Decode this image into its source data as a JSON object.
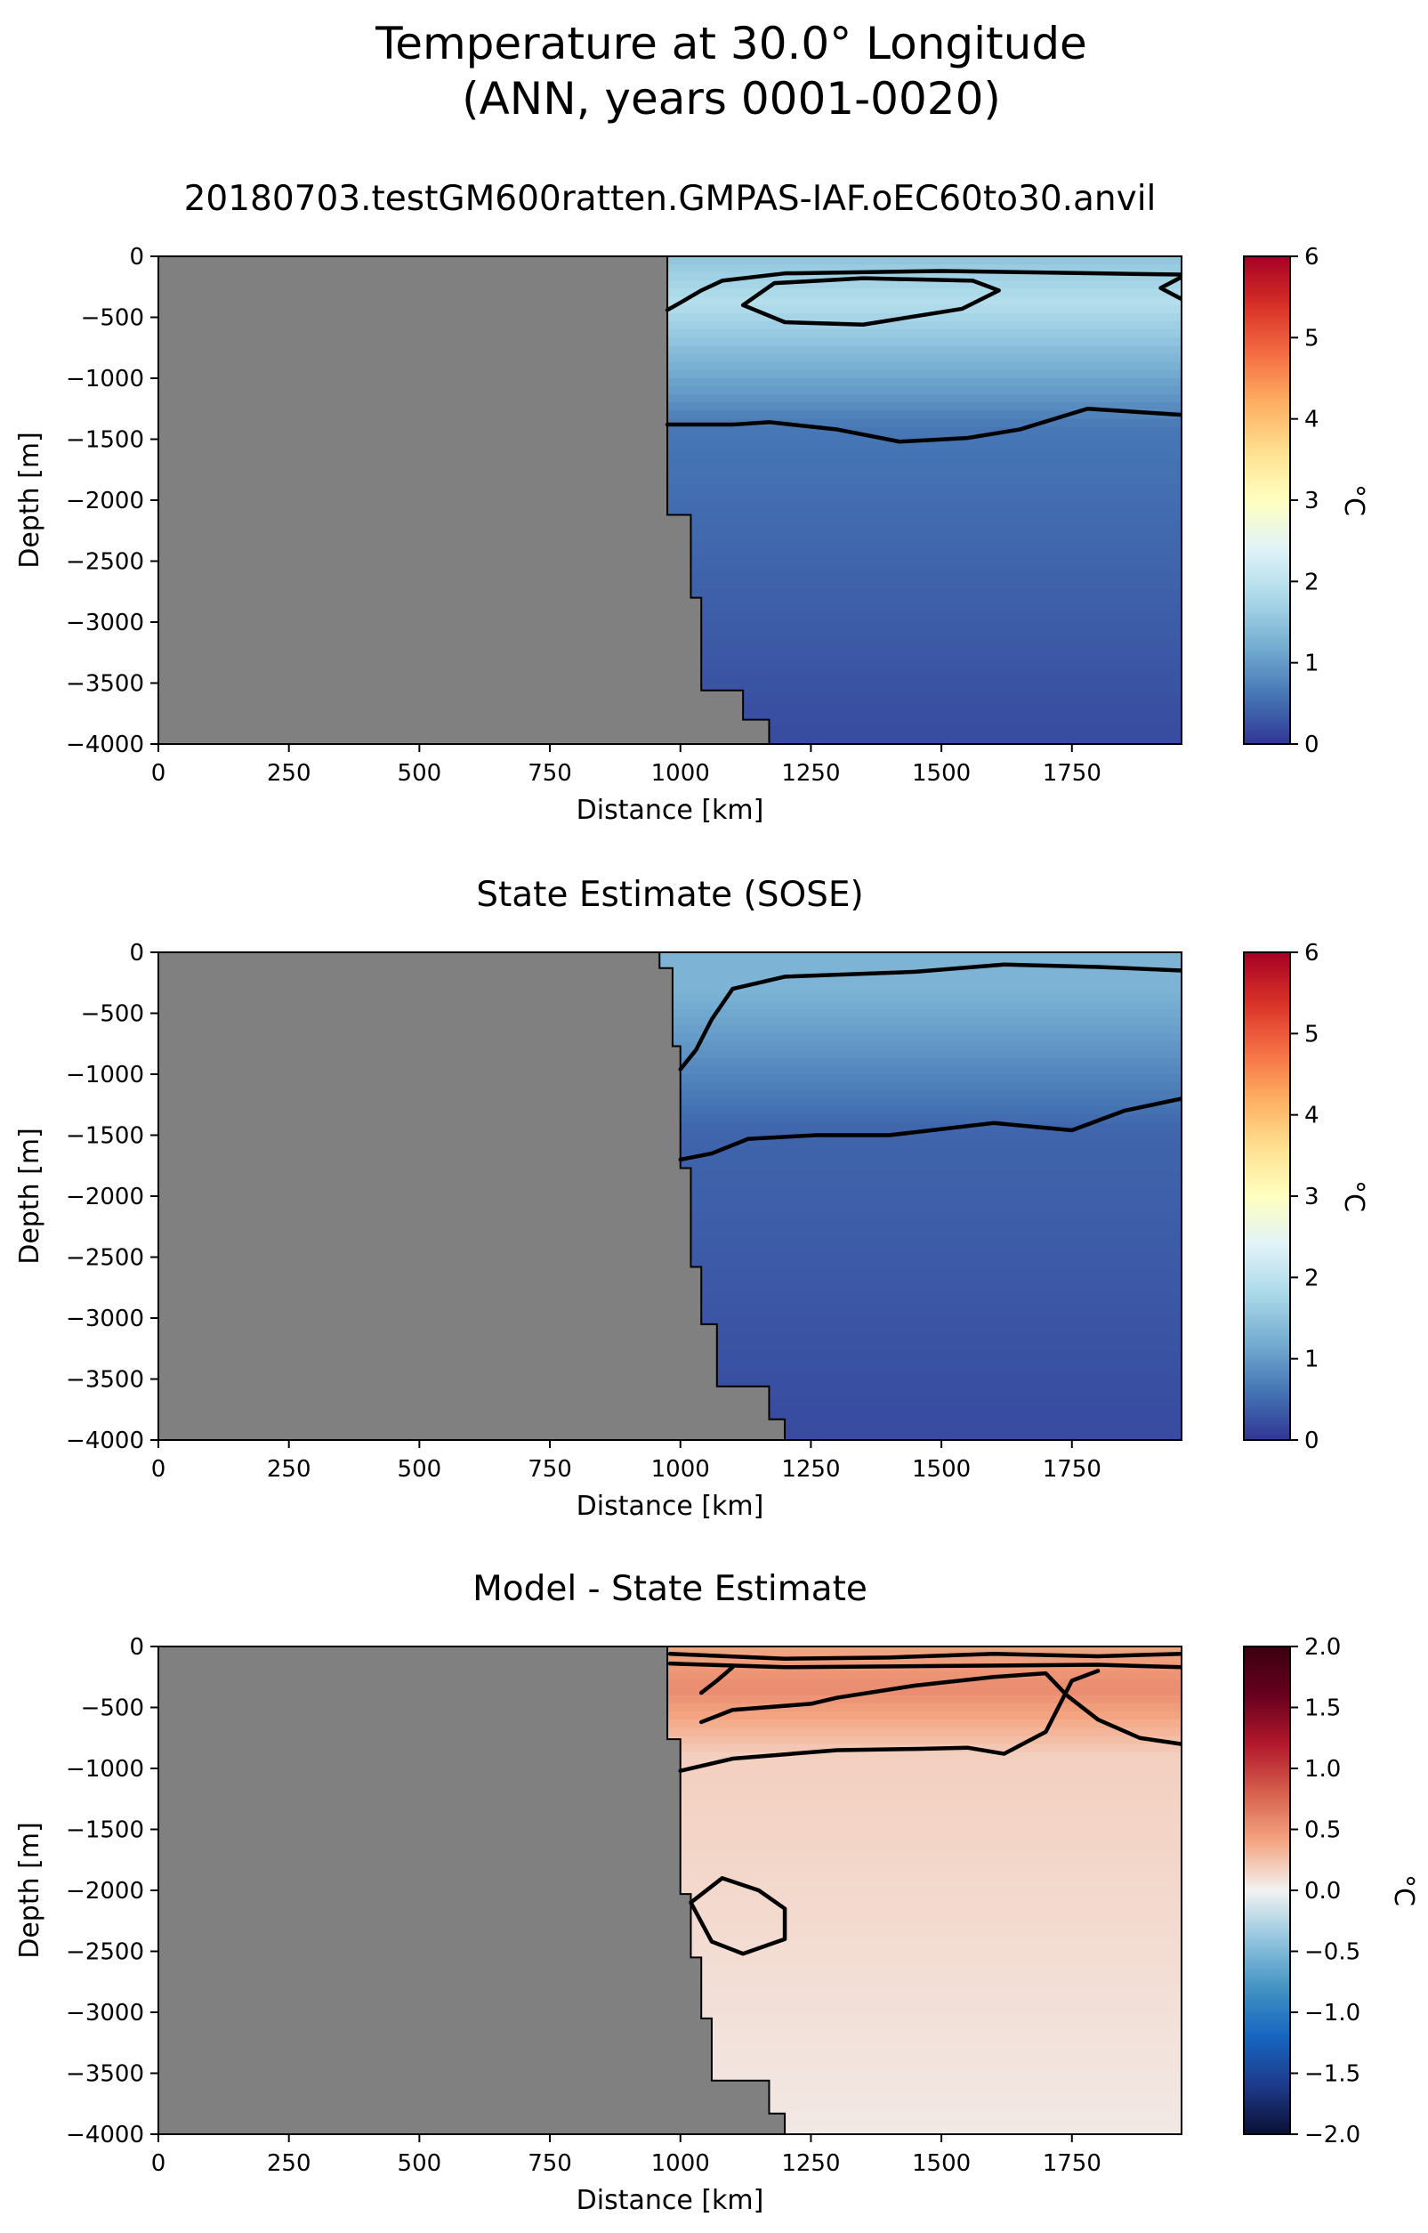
{
  "figure": {
    "title_line1": "Temperature at 30.0° Longitude",
    "title_line2": "(ANN, years 0001-0020)"
  },
  "colors": {
    "land": "#808080",
    "contour": "#000000",
    "temp_cmap": [
      "#313695",
      "#4575b4",
      "#74add1",
      "#abd9e9",
      "#e0f3f8",
      "#ffffbf",
      "#fee090",
      "#fdae61",
      "#f46d43",
      "#d73027",
      "#a50026"
    ],
    "diff_cmap": [
      "#0a1033",
      "#1e3a8a",
      "#1565c0",
      "#4393c3",
      "#92c5de",
      "#f2f2f2",
      "#f4a582",
      "#d6604d",
      "#b2182b",
      "#67001f",
      "#3a0010"
    ]
  },
  "chart_data": [
    {
      "type": "heatmap",
      "title": "20180703.testGM600ratten.GMPAS-IAF.oEC60to30.anvil",
      "xlabel": "Distance [km]",
      "ylabel": "Depth [m]",
      "xlim": [
        0,
        1960
      ],
      "ylim": [
        -4000,
        0
      ],
      "xticks": [
        0,
        250,
        500,
        750,
        1000,
        1250,
        1500,
        1750
      ],
      "yticks": [
        0,
        -500,
        -1000,
        -1500,
        -2000,
        -2500,
        -3000,
        -3500,
        -4000
      ],
      "colorbar": {
        "label": "°C",
        "min": 0,
        "max": 6,
        "ticks": [
          0,
          1,
          2,
          3,
          4,
          5,
          6
        ]
      },
      "land_boundary": [
        [
          975,
          0
        ],
        [
          975,
          -2120
        ],
        [
          1020,
          -2120
        ],
        [
          1020,
          -2800
        ],
        [
          1040,
          -2800
        ],
        [
          1040,
          -3560
        ],
        [
          1120,
          -3560
        ],
        [
          1120,
          -3800
        ],
        [
          1170,
          -3800
        ],
        [
          1170,
          -4000
        ]
      ],
      "contours": [
        [
          [
            975,
            -440
          ],
          [
            1000,
            -380
          ],
          [
            1040,
            -280
          ],
          [
            1080,
            -200
          ],
          [
            1200,
            -140
          ],
          [
            1500,
            -120
          ],
          [
            1800,
            -140
          ],
          [
            1960,
            -150
          ]
        ],
        [
          [
            1120,
            -400
          ],
          [
            1180,
            -220
          ],
          [
            1350,
            -180
          ],
          [
            1560,
            -200
          ],
          [
            1610,
            -280
          ],
          [
            1540,
            -430
          ],
          [
            1350,
            -560
          ],
          [
            1200,
            -540
          ],
          [
            1120,
            -400
          ]
        ],
        [
          [
            1960,
            -170
          ],
          [
            1920,
            -260
          ],
          [
            1960,
            -350
          ]
        ],
        [
          [
            975,
            -1380
          ],
          [
            1100,
            -1380
          ],
          [
            1170,
            -1360
          ],
          [
            1300,
            -1420
          ],
          [
            1420,
            -1520
          ],
          [
            1550,
            -1490
          ],
          [
            1650,
            -1420
          ],
          [
            1780,
            -1250
          ],
          [
            1960,
            -1300
          ]
        ]
      ],
      "field": {
        "surface_temp": 1.5,
        "deep_temp": 0.2,
        "core_depth": -380,
        "core_temp": 1.9,
        "thermocline_depth": -1400
      }
    },
    {
      "type": "heatmap",
      "title": "State Estimate (SOSE)",
      "xlabel": "Distance [km]",
      "ylabel": "Depth [m]",
      "xlim": [
        0,
        1960
      ],
      "ylim": [
        -4000,
        0
      ],
      "xticks": [
        0,
        250,
        500,
        750,
        1000,
        1250,
        1500,
        1750
      ],
      "yticks": [
        0,
        -500,
        -1000,
        -1500,
        -2000,
        -2500,
        -3000,
        -3500,
        -4000
      ],
      "colorbar": {
        "label": "°C",
        "min": 0,
        "max": 6,
        "ticks": [
          0,
          1,
          2,
          3,
          4,
          5,
          6
        ]
      },
      "land_boundary": [
        [
          960,
          0
        ],
        [
          960,
          -130
        ],
        [
          985,
          -130
        ],
        [
          985,
          -770
        ],
        [
          1000,
          -770
        ],
        [
          1000,
          -1770
        ],
        [
          1020,
          -1770
        ],
        [
          1020,
          -2580
        ],
        [
          1040,
          -2580
        ],
        [
          1040,
          -3050
        ],
        [
          1070,
          -3050
        ],
        [
          1070,
          -3560
        ],
        [
          1170,
          -3560
        ],
        [
          1170,
          -3830
        ],
        [
          1200,
          -3830
        ],
        [
          1200,
          -4000
        ]
      ],
      "contours": [
        [
          [
            1000,
            -960
          ],
          [
            1030,
            -800
          ],
          [
            1060,
            -550
          ],
          [
            1100,
            -300
          ],
          [
            1200,
            -200
          ],
          [
            1450,
            -160
          ],
          [
            1620,
            -100
          ],
          [
            1800,
            -120
          ],
          [
            1960,
            -150
          ]
        ],
        [
          [
            1000,
            -1700
          ],
          [
            1060,
            -1650
          ],
          [
            1130,
            -1530
          ],
          [
            1260,
            -1500
          ],
          [
            1400,
            -1500
          ],
          [
            1600,
            -1400
          ],
          [
            1750,
            -1460
          ],
          [
            1850,
            -1300
          ],
          [
            1960,
            -1200
          ]
        ]
      ],
      "field": {
        "surface_temp": 1.3,
        "deep_temp": 0.2,
        "core_depth": -300,
        "core_temp": 1.3,
        "thermocline_depth": -1450
      }
    },
    {
      "type": "heatmap",
      "title": "Model - State Estimate",
      "xlabel": "Distance [km]",
      "ylabel": "Depth [m]",
      "xlim": [
        0,
        1960
      ],
      "ylim": [
        -4000,
        0
      ],
      "xticks": [
        0,
        250,
        500,
        750,
        1000,
        1250,
        1500,
        1750
      ],
      "yticks": [
        0,
        -500,
        -1000,
        -1500,
        -2000,
        -2500,
        -3000,
        -3500,
        -4000
      ],
      "colorbar": {
        "label": "°C",
        "min": -2.0,
        "max": 2.0,
        "ticks": [
          "2.0",
          "1.5",
          "1.0",
          "0.5",
          "0.0",
          "−0.5",
          "−1.0",
          "−1.5",
          "−2.0"
        ],
        "tick_values": [
          2.0,
          1.5,
          1.0,
          0.5,
          0.0,
          -0.5,
          -1.0,
          -1.5,
          -2.0
        ]
      },
      "land_boundary": [
        [
          975,
          0
        ],
        [
          975,
          -760
        ],
        [
          1000,
          -760
        ],
        [
          1000,
          -2030
        ],
        [
          1020,
          -2030
        ],
        [
          1020,
          -2550
        ],
        [
          1040,
          -2550
        ],
        [
          1040,
          -3050
        ],
        [
          1060,
          -3050
        ],
        [
          1060,
          -3560
        ],
        [
          1170,
          -3560
        ],
        [
          1170,
          -3830
        ],
        [
          1200,
          -3830
        ],
        [
          1200,
          -4000
        ]
      ],
      "contours": [
        [
          [
            980,
            -60
          ],
          [
            1200,
            -100
          ],
          [
            1400,
            -90
          ],
          [
            1600,
            -60
          ],
          [
            1800,
            -80
          ],
          [
            1960,
            -60
          ]
        ],
        [
          [
            980,
            -140
          ],
          [
            1200,
            -170
          ],
          [
            1500,
            -160
          ],
          [
            1800,
            -150
          ],
          [
            1960,
            -170
          ]
        ],
        [
          [
            1040,
            -380
          ],
          [
            1070,
            -280
          ],
          [
            1100,
            -170
          ]
        ],
        [
          [
            1040,
            -620
          ],
          [
            1100,
            -520
          ],
          [
            1250,
            -470
          ],
          [
            1300,
            -420
          ],
          [
            1450,
            -320
          ],
          [
            1600,
            -250
          ],
          [
            1700,
            -220
          ],
          [
            1740,
            -400
          ],
          [
            1800,
            -600
          ],
          [
            1880,
            -750
          ],
          [
            1960,
            -800
          ]
        ],
        [
          [
            1000,
            -1020
          ],
          [
            1100,
            -920
          ],
          [
            1300,
            -850
          ],
          [
            1450,
            -840
          ],
          [
            1550,
            -830
          ],
          [
            1620,
            -880
          ],
          [
            1700,
            -700
          ],
          [
            1750,
            -280
          ],
          [
            1800,
            -200
          ]
        ],
        [
          [
            1020,
            -2100
          ],
          [
            1080,
            -1900
          ],
          [
            1150,
            -2000
          ],
          [
            1200,
            -2150
          ],
          [
            1200,
            -2400
          ],
          [
            1120,
            -2520
          ],
          [
            1060,
            -2420
          ],
          [
            1020,
            -2100
          ]
        ]
      ],
      "field": {
        "surface_temp": 0.4,
        "deep_temp": 0.05,
        "core_depth": -350,
        "core_temp": 0.55,
        "thermocline_depth": -900
      }
    }
  ]
}
